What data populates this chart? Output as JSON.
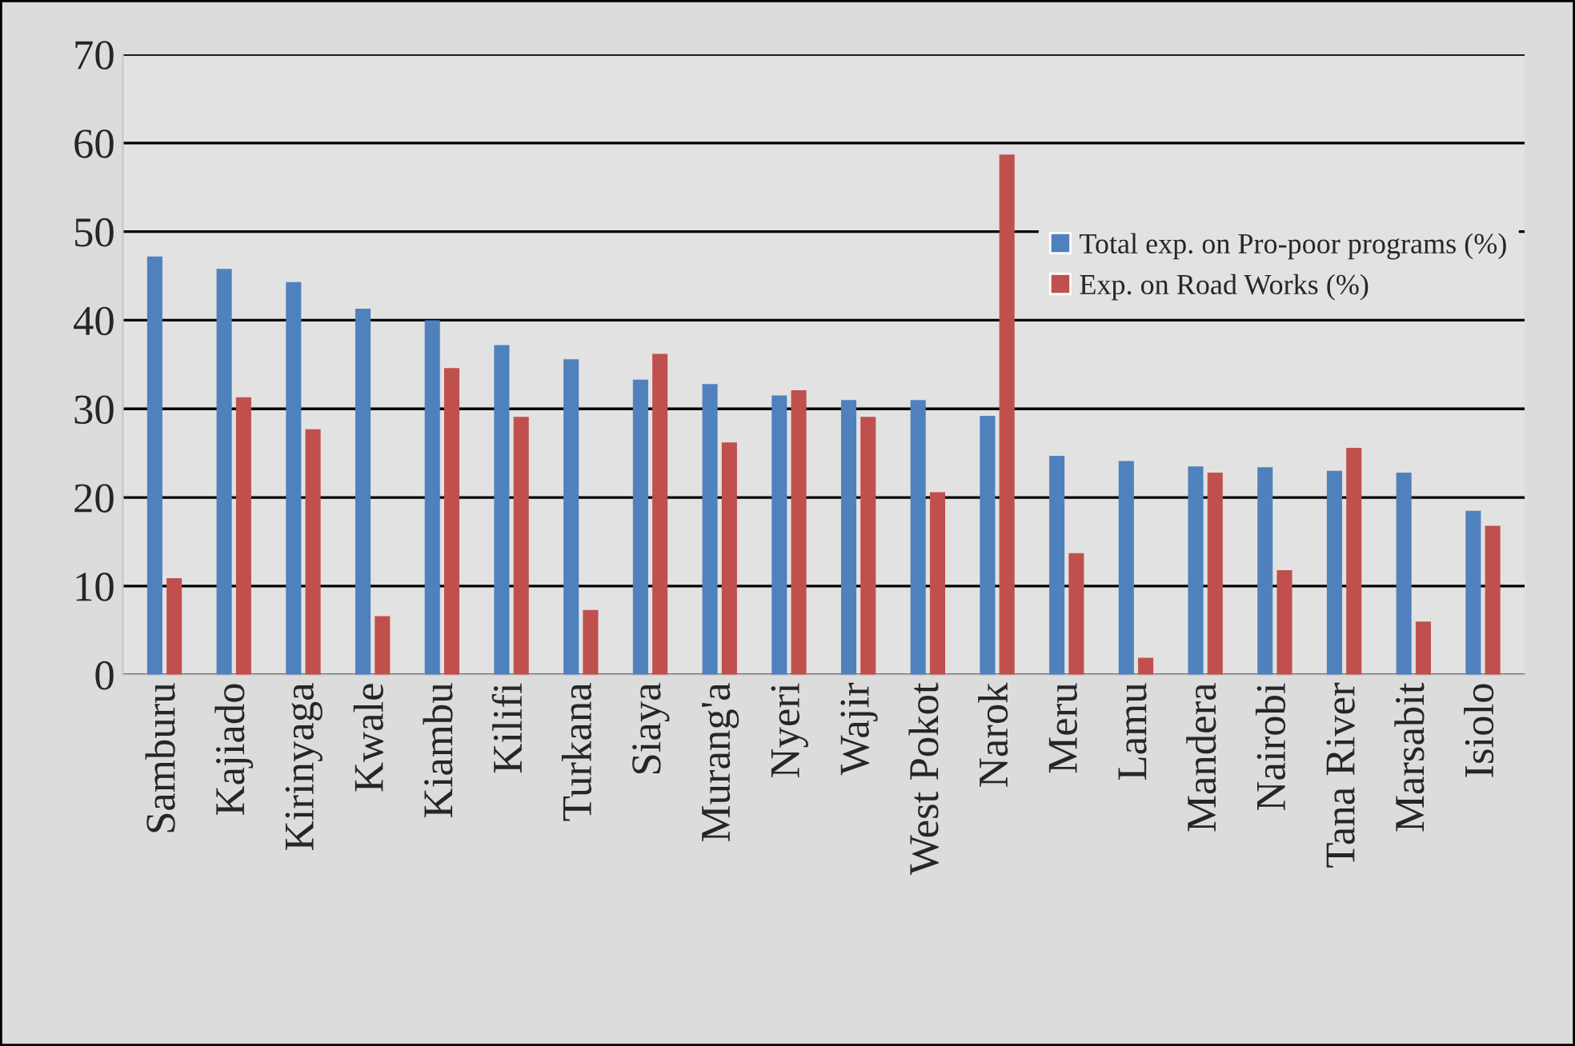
{
  "chart_data": {
    "type": "bar",
    "categories": [
      "Samburu",
      "Kajiado",
      "Kirinyaga",
      "Kwale",
      "Kiambu",
      "Kilifi",
      "Turkana",
      "Siaya",
      "Murang'a",
      "Nyeri",
      "Wajir",
      "West Pokot",
      "Narok",
      "Meru",
      "Lamu",
      "Mandera",
      "Nairobi",
      "Tana River",
      "Marsabit",
      "Isiolo"
    ],
    "series": [
      {
        "name": "Total exp. on Pro-poor programs (%)",
        "color": "#4f81bd",
        "values": [
          47.2,
          45.8,
          44.3,
          41.3,
          40.0,
          37.2,
          35.6,
          33.3,
          32.8,
          31.5,
          31.0,
          31.0,
          29.2,
          24.7,
          24.1,
          23.5,
          23.4,
          23.0,
          22.8,
          18.5
        ]
      },
      {
        "name": "Exp. on Road Works (%)",
        "color": "#c0504d",
        "values": [
          10.9,
          31.3,
          27.7,
          6.6,
          34.6,
          29.1,
          7.3,
          36.2,
          26.2,
          32.1,
          29.1,
          20.6,
          58.7,
          13.7,
          1.9,
          22.8,
          11.8,
          25.6,
          6.0,
          16.8
        ]
      }
    ],
    "ylim": [
      0,
      70
    ],
    "yticks": [
      0,
      10,
      20,
      30,
      40,
      50,
      60,
      70
    ],
    "grid": "y",
    "legend": "top right"
  }
}
